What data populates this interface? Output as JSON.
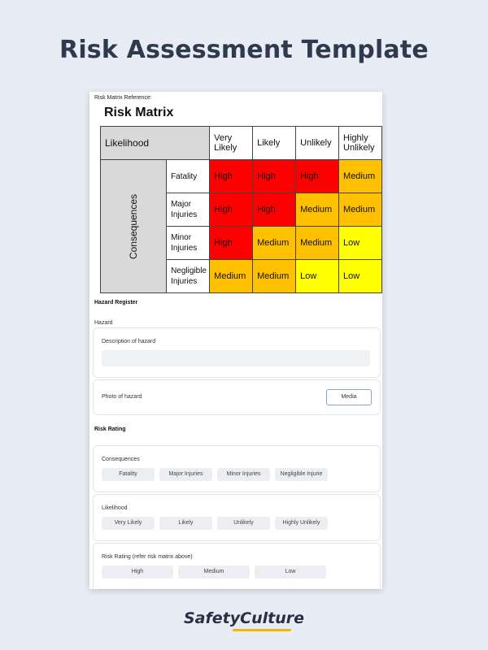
{
  "title": "Risk Assessment Template",
  "brand": "SafetyCulture",
  "reference_label": "Risk Matrix Reference:",
  "matrix": {
    "title": "Risk Matrix",
    "likelihood_header": "Likelihood",
    "consequences_header": "Consequences",
    "likelihood_levels": [
      "Very Likely",
      "Likely",
      "Unlikely",
      "Highly Unlikely"
    ],
    "rows": [
      {
        "consequence": "Fatality",
        "ratings": [
          "High",
          "High",
          "High",
          "Medium"
        ]
      },
      {
        "consequence": "Major Injuries",
        "ratings": [
          "High",
          "High",
          "Medium",
          "Medium"
        ]
      },
      {
        "consequence": "Minor Injuries",
        "ratings": [
          "High",
          "Medium",
          "Medium",
          "Low"
        ]
      },
      {
        "consequence": "Negligible Injuries",
        "ratings": [
          "Medium",
          "Medium",
          "Low",
          "Low"
        ]
      }
    ],
    "colors": {
      "High": "#ff0000",
      "Medium": "#ffc000",
      "Low": "#ffff00"
    }
  },
  "hazard_register": {
    "heading": "Hazard Register",
    "hazard_label": "Hazard",
    "description_label": "Description of hazard",
    "description_value": "",
    "photo_label": "Photo of hazard",
    "media_button": "Media"
  },
  "risk_rating": {
    "heading": "Risk Rating",
    "consequences_label": "Consequences",
    "consequences_options": [
      "Fatality",
      "Major Injuries",
      "Minor Injuries",
      "Negligible Injurie"
    ],
    "likelihood_label": "Likelihood",
    "likelihood_options": [
      "Very Likely",
      "Likely",
      "Unlikely",
      "Highly Unlikely"
    ],
    "rating_label": "Risk Rating (refer risk matrix above)",
    "rating_options": [
      "High",
      "Medium",
      "Low"
    ]
  }
}
